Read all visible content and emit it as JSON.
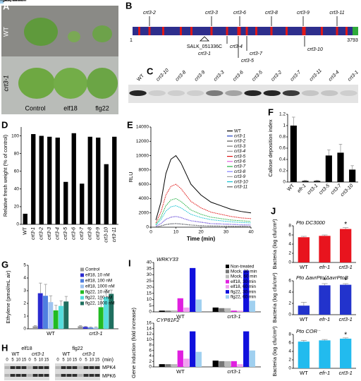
{
  "photo": {
    "panel": "A",
    "rows": [
      "WT",
      "crt3-1"
    ],
    "columns": [
      "Control",
      "elf18",
      "flg22"
    ]
  },
  "gene_map": {
    "panel": "B",
    "start": "1",
    "end": "3793",
    "alleles_above": [
      "crt3-2",
      "crt3-3",
      "crt3-6",
      "crt3-8",
      "crt3-9",
      "crt3-11"
    ],
    "alleles_below": [
      "crt3-4",
      "crt3-7",
      "crt3-5",
      "crt3-10"
    ],
    "insertion": "SALK_051336C",
    "insertion_allele": "crt3-1"
  },
  "blot_c": {
    "panel": "C",
    "lanes": [
      "WT",
      "crt3-10",
      "crt3-8",
      "crt3-9",
      "crt3-3",
      "crt3-6",
      "crt3-5",
      "crt3-2",
      "crt3-7",
      "crt3-11",
      "crt3-4",
      "crt3-1"
    ]
  },
  "blot_h": {
    "panel": "H",
    "treatments": [
      "elf18",
      "flg22"
    ],
    "genotypes": [
      "WT",
      "crt3-1"
    ],
    "times": [
      "0",
      "5",
      "10",
      "15"
    ],
    "time_unit": "(min)",
    "proteins": [
      "MPK4",
      "MPK6"
    ]
  },
  "chart_data": [
    {
      "type": "bar",
      "panel": "D",
      "ylabel": "Relative fresh weight (% of control)",
      "categories": [
        "WT",
        "crt3-1",
        "crt3-2",
        "crt3-3",
        "crt3-4",
        "crt3-5",
        "crt3-6",
        "crt3-7",
        "crt3-8",
        "crt3-9",
        "crt3-10",
        "crt3-11"
      ],
      "values": [
        12,
        102,
        100,
        99,
        98,
        48,
        103,
        46,
        99,
        98,
        68,
        99
      ],
      "color": "#000000",
      "ylim": [
        0,
        110
      ],
      "yticks": [
        0,
        20,
        40,
        60,
        80,
        100
      ]
    },
    {
      "type": "line",
      "panel": "E",
      "ylabel": "RLU",
      "xlabel": "Time (min)",
      "legend": "upper right",
      "x": [
        2,
        4,
        6,
        8,
        10,
        12,
        14,
        16,
        20,
        24,
        28,
        32,
        36,
        40
      ],
      "xlim": [
        0,
        40
      ],
      "xticks": [
        0,
        10,
        20,
        30,
        40
      ],
      "ylim": [
        0,
        14000
      ],
      "yticks": [
        0,
        2000,
        4000,
        6000,
        8000,
        10000,
        12000,
        14000
      ],
      "series": [
        {
          "name": "WT",
          "color": "#000000",
          "values": [
            1000,
            3500,
            7500,
            9500,
            10000,
            9000,
            7500,
            6000,
            4500,
            3500,
            3000,
            2500,
            2200,
            2000
          ]
        },
        {
          "name": "crt3-1",
          "color": "#1f3fbf",
          "values": [
            50,
            170,
            370,
            470,
            500,
            450,
            370,
            300,
            220,
            170,
            150,
            120,
            110,
            100
          ]
        },
        {
          "name": "crt3-2",
          "color": "#555555",
          "values": [
            150,
            500,
            1100,
            1400,
            1500,
            1350,
            1100,
            900,
            700,
            500,
            450,
            400,
            330,
            300
          ]
        },
        {
          "name": "crt3-3",
          "color": "#777777",
          "values": [
            150,
            500,
            1100,
            1400,
            1500,
            1350,
            1100,
            900,
            700,
            500,
            450,
            400,
            330,
            300
          ]
        },
        {
          "name": "crt3-4",
          "color": "#999999",
          "values": [
            50,
            170,
            370,
            470,
            500,
            450,
            370,
            300,
            220,
            170,
            150,
            120,
            110,
            100
          ]
        },
        {
          "name": "crt3-5",
          "color": "#e01010",
          "values": [
            600,
            2100,
            4500,
            5700,
            6000,
            5400,
            4500,
            3600,
            2700,
            2100,
            1800,
            1500,
            1300,
            1200
          ]
        },
        {
          "name": "crt3-6",
          "color": "#e060e0",
          "values": [
            150,
            500,
            1100,
            1400,
            1500,
            1350,
            1100,
            900,
            700,
            500,
            450,
            400,
            330,
            300
          ]
        },
        {
          "name": "crt3-7",
          "color": "#20b040",
          "values": [
            400,
            1400,
            3000,
            3800,
            4000,
            3600,
            3000,
            2400,
            1800,
            1400,
            1200,
            1000,
            900,
            800
          ]
        },
        {
          "name": "crt3-8",
          "color": "#8080ff",
          "values": [
            150,
            500,
            1100,
            1400,
            1500,
            1350,
            1100,
            900,
            700,
            500,
            450,
            400,
            330,
            300
          ]
        },
        {
          "name": "crt3-9",
          "color": "#a0a0a0",
          "values": [
            50,
            170,
            370,
            470,
            500,
            450,
            370,
            300,
            220,
            170,
            150,
            120,
            110,
            100
          ]
        },
        {
          "name": "crt3-10",
          "color": "#10c0d0",
          "values": [
            300,
            1050,
            2250,
            2850,
            3000,
            2700,
            2250,
            1800,
            1350,
            1050,
            900,
            750,
            660,
            600
          ]
        },
        {
          "name": "crt3-11",
          "color": "#606060",
          "values": [
            50,
            170,
            370,
            470,
            500,
            450,
            370,
            300,
            220,
            170,
            150,
            120,
            110,
            100
          ]
        }
      ]
    },
    {
      "type": "bar",
      "panel": "F",
      "ylabel": "Callose deposition index",
      "categories": [
        "WT",
        "efr-1",
        "crt3-1",
        "crt3-5",
        "crt3-7",
        "crt3-10"
      ],
      "values": [
        1,
        0.02,
        0.02,
        0.47,
        0.52,
        0.22
      ],
      "errors": [
        0.15,
        0.01,
        0.01,
        0.1,
        0.15,
        0.07
      ],
      "color": "#000000",
      "ylim": [
        0,
        1.2
      ],
      "yticks": [
        0,
        0.2,
        0.4,
        0.6,
        0.8,
        1,
        1.2
      ]
    },
    {
      "type": "grouped_bar",
      "panel": "G",
      "ylabel": "Ethylene (pmol/mL air)",
      "legend": "upper right",
      "categories": [
        "WT",
        "crt3-1"
      ],
      "ylim": [
        0,
        5
      ],
      "yticks": [
        0,
        1,
        2,
        3,
        4,
        5
      ],
      "series": [
        {
          "name": "Control",
          "color": "#999999",
          "values": [
            0.2,
            0.2
          ],
          "errors": [
            0.05,
            0.05
          ]
        },
        {
          "name": "elf18, 10 nM",
          "color": "#2b2bd0",
          "values": [
            2.8,
            0.15
          ],
          "errors": [
            0.8,
            0.05
          ]
        },
        {
          "name": "elf18, 100 nM",
          "color": "#4f7fe0",
          "values": [
            2.6,
            0.1
          ],
          "errors": [
            0.9,
            0.05
          ]
        },
        {
          "name": "elf18, 1000 nM",
          "color": "#9fc3f0",
          "values": [
            2.1,
            0.1
          ],
          "errors": [
            0.5,
            0.05
          ]
        },
        {
          "name": "flg22, 10 nM",
          "color": "#22bb22",
          "values": [
            1.45,
            1.7
          ],
          "errors": [
            0.4,
            0.6
          ]
        },
        {
          "name": "flg22, 100 nM",
          "color": "#55dddd",
          "values": [
            1.8,
            2.5
          ],
          "errors": [
            0.4,
            0.6
          ]
        },
        {
          "name": "flg22, 1000 nM",
          "color": "#1f6f5f",
          "values": [
            2.15,
            2.75
          ],
          "errors": [
            0.4,
            0.3
          ]
        }
      ]
    },
    {
      "type": "grouped_bar",
      "panel": "I",
      "title": "WRKY33",
      "ylabel": "Gene induction (fold increase)",
      "legend": "upper right",
      "categories": [
        "WT",
        "crt3-1"
      ],
      "ylim": [
        0,
        40
      ],
      "yticks": [
        0,
        5,
        10,
        15,
        20,
        25,
        30,
        35,
        40
      ],
      "series": [
        {
          "name": "Non-treated",
          "color": "#000000",
          "values": [
            1,
            3.5
          ]
        },
        {
          "name": "Mock, 30 min",
          "color": "#777777",
          "values": [
            1,
            3
          ]
        },
        {
          "name": "Mock, 60 min",
          "color": "#bbbbbb",
          "values": [
            1.2,
            3
          ]
        },
        {
          "name": "elf18, 30 min",
          "color": "#e020e0",
          "values": [
            11,
            1
          ]
        },
        {
          "name": "elf18, 60 min",
          "color": "#f0a0f0",
          "values": [
            3.5,
            1
          ]
        },
        {
          "name": "flg22, 30 min",
          "color": "#1010dd",
          "values": [
            35.5,
            33.5
          ]
        },
        {
          "name": "flg22, 60 min",
          "color": "#a0d0f0",
          "values": [
            10,
            9
          ]
        }
      ]
    },
    {
      "type": "grouped_bar",
      "title": "CYP81F2",
      "ylabel": "Gene induction (fold increase)",
      "legend": "upper right",
      "categories": [
        "WT",
        "crt3-1"
      ],
      "ylim": [
        0,
        16
      ],
      "yticks": [
        0,
        2,
        4,
        6,
        8,
        10,
        12,
        14,
        16
      ],
      "series": [
        {
          "name": "Non-treated",
          "color": "#000000",
          "values": [
            1,
            2.3
          ]
        },
        {
          "name": "Mock, 30 min",
          "color": "#777777",
          "values": [
            1,
            2.1
          ]
        },
        {
          "name": "Mock, 60 min",
          "color": "#bbbbbb",
          "values": [
            1,
            2.1
          ]
        },
        {
          "name": "elf18, 30 min",
          "color": "#e020e0",
          "values": [
            6,
            2.1
          ]
        },
        {
          "name": "elf18, 60 min",
          "color": "#f0a0f0",
          "values": [
            3,
            1
          ]
        },
        {
          "name": "flg22, 30 min",
          "color": "#1010dd",
          "values": [
            13,
            13
          ]
        },
        {
          "name": "flg22, 60 min",
          "color": "#a0d0f0",
          "values": [
            5.5,
            6
          ]
        }
      ]
    },
    {
      "type": "bar",
      "panel": "J",
      "title": "Pto DC3000",
      "ylabel": "Bacteria (log cfu/cm²)",
      "categories": [
        "WT",
        "efr-1",
        "crt3-1"
      ],
      "values": [
        5.5,
        5.8,
        7.3
      ],
      "errors": [
        0.2,
        0.2,
        0.3
      ],
      "color": "#e8141e",
      "ylim": [
        0,
        8
      ],
      "yticks": [
        0,
        2,
        4,
        6,
        8
      ],
      "annotations": [
        {
          "text": "*",
          "category": "crt3-1"
        }
      ]
    },
    {
      "type": "bar",
      "title": "Pto ΔavrPto/ΔavrPtoB",
      "ylabel": "Bacteria (log cfu/cm²)",
      "categories": [
        "WT",
        "efr-1",
        "crt3-1"
      ],
      "values": [
        1.6,
        5.2,
        5.3
      ],
      "errors": [
        0.6,
        0.3,
        0.2
      ],
      "color": "#2233cc",
      "ylim": [
        0,
        6
      ],
      "yticks": [
        0,
        2,
        4,
        6
      ],
      "annotations": [
        {
          "text": "*",
          "category": "efr-1"
        },
        {
          "text": "*",
          "category": "crt3-1"
        }
      ]
    },
    {
      "type": "bar",
      "title": "Pto COR⁻",
      "ylabel": "Bacteria (log cfu/cm²)",
      "categories": [
        "WT",
        "efr-1",
        "crt3-1"
      ],
      "values": [
        6.3,
        6.6,
        7
      ],
      "errors": [
        0.3,
        0.2,
        0.2
      ],
      "color": "#22bbee",
      "ylim": [
        0,
        8
      ],
      "yticks": [
        0,
        2,
        4,
        6,
        8
      ],
      "annotations": [
        {
          "text": "*",
          "category": "crt3-1"
        }
      ]
    }
  ]
}
